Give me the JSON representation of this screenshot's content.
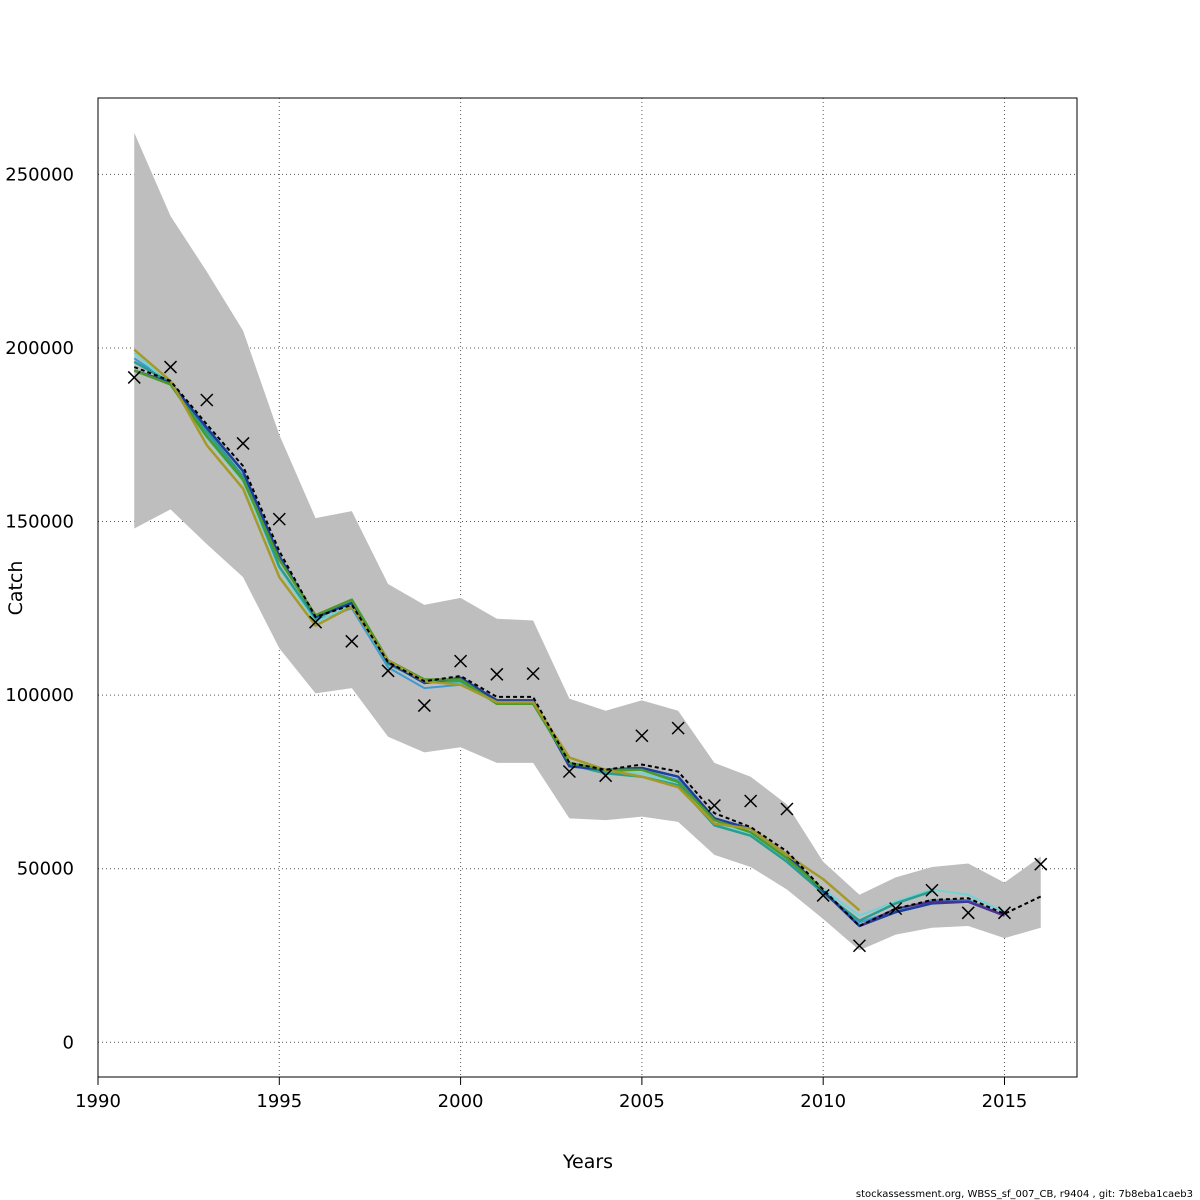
{
  "chart_data": {
    "type": "line",
    "xlabel": "Years",
    "ylabel": "Catch",
    "xlim": [
      1990,
      2017
    ],
    "ylim": [
      -10000,
      272000
    ],
    "x_ticks": [
      1990,
      1995,
      2000,
      2005,
      2010,
      2015
    ],
    "y_ticks": [
      0,
      50000,
      100000,
      150000,
      200000,
      250000
    ],
    "grid": true,
    "band": {
      "color": "#bebebe",
      "x": [
        1991,
        1992,
        1993,
        1994,
        1995,
        1996,
        1997,
        1998,
        1999,
        2000,
        2001,
        2002,
        2003,
        2004,
        2005,
        2006,
        2007,
        2008,
        2009,
        2010,
        2011,
        2012,
        2013,
        2014,
        2015,
        2016
      ],
      "upper": [
        262000,
        238000,
        222000,
        205000,
        175000,
        151000,
        153000,
        132000,
        126000,
        128000,
        122000,
        121500,
        99000,
        95500,
        98500,
        95500,
        80500,
        76500,
        68500,
        52000,
        42500,
        47500,
        50500,
        51500,
        46000,
        53500
      ],
      "lower": [
        148000,
        153500,
        143500,
        134000,
        113500,
        100500,
        102000,
        88000,
        83500,
        85000,
        80500,
        80500,
        64500,
        64000,
        65000,
        63500,
        54000,
        50500,
        44000,
        35500,
        26500,
        31000,
        33000,
        33500,
        30000,
        33000
      ]
    },
    "observed": {
      "name": "",
      "marker": "x",
      "x": [
        1991,
        1992,
        1993,
        1994,
        1995,
        1996,
        1997,
        1998,
        1999,
        2000,
        2001,
        2002,
        2003,
        2004,
        2005,
        2006,
        2007,
        2008,
        2009,
        2010,
        2011,
        2012,
        2013,
        2014,
        2015,
        2016
      ],
      "y": [
        191500,
        194500,
        185000,
        172500,
        150700,
        121000,
        115500,
        107000,
        97000,
        109800,
        106000,
        106200,
        78000,
        76800,
        88300,
        90500,
        68200,
        69500,
        67200,
        42300,
        27800,
        38500,
        43800,
        37300,
        37300,
        51300
      ]
    },
    "x": [
      1991,
      1992,
      1993,
      1994,
      1995,
      1996,
      1997,
      1998,
      1999,
      2000,
      2001,
      2002,
      2003,
      2004,
      2005,
      2006,
      2007,
      2008,
      2009,
      2010,
      2011,
      2012,
      2013,
      2014,
      2015,
      2016
    ],
    "series": [
      {
        "color": "#3d9ad2",
        "width": 2,
        "values": [
          197000,
          190000,
          175000,
          162000,
          137000,
          121500,
          125000,
          108000,
          102000,
          103000,
          98000,
          98000,
          80000,
          78000,
          78500,
          75500,
          64000,
          60500,
          53000,
          43500,
          34500,
          38000,
          41000,
          41000,
          36500,
          null
        ]
      },
      {
        "color": "#6fd3d3",
        "width": 2,
        "values": [
          198500,
          189500,
          174000,
          161500,
          136500,
          121000,
          126000,
          109000,
          103500,
          103500,
          97500,
          97500,
          80500,
          77500,
          77500,
          74500,
          63000,
          60000,
          52500,
          44000,
          36500,
          40500,
          44000,
          42500,
          37500,
          null
        ]
      },
      {
        "color": "#2a9d8f",
        "width": 2.5,
        "values": [
          196000,
          190000,
          176000,
          163000,
          137000,
          122000,
          127000,
          109000,
          104000,
          104000,
          98000,
          98000,
          80000,
          77500,
          76500,
          74000,
          62500,
          59500,
          52000,
          43000,
          35000,
          40000,
          43500,
          null,
          null,
          null
        ]
      },
      {
        "color": "#1d3f9e",
        "width": 2.5,
        "values": [
          193500,
          190000,
          177000,
          164500,
          140000,
          122500,
          126500,
          109500,
          103500,
          105000,
          98500,
          98500,
          79500,
          78500,
          79000,
          76500,
          64500,
          61500,
          54000,
          43500,
          33500,
          37500,
          40000,
          40500,
          36500,
          null
        ]
      },
      {
        "color": "#5b2c8f",
        "width": 2,
        "values": [
          null,
          null,
          null,
          null,
          null,
          null,
          null,
          null,
          null,
          null,
          null,
          null,
          null,
          null,
          null,
          null,
          null,
          null,
          null,
          null,
          33500,
          38500,
          40500,
          40500,
          36500,
          null
        ]
      },
      {
        "color": "#4c9a2a",
        "width": 2.5,
        "values": [
          193500,
          189500,
          174500,
          162000,
          139000,
          123000,
          127500,
          110000,
          104500,
          104500,
          97500,
          97500,
          80500,
          78500,
          78500,
          75000,
          64000,
          60500,
          53000,
          44000,
          null,
          null,
          null,
          null,
          null,
          null
        ]
      },
      {
        "color": "#a39a2a",
        "width": 2.5,
        "values": [
          199500,
          190500,
          172000,
          159500,
          134000,
          120000,
          125500,
          110000,
          104000,
          103000,
          98000,
          98000,
          82000,
          78500,
          76500,
          73500,
          63000,
          61500,
          54000,
          47000,
          38000,
          null,
          null,
          null,
          null,
          null
        ]
      },
      {
        "color": "#000000",
        "width": 2,
        "dash": "4,3",
        "values": [
          194500,
          190500,
          178000,
          166000,
          141500,
          122500,
          126000,
          109500,
          104000,
          105500,
          99500,
          99500,
          80500,
          78500,
          80000,
          78000,
          66000,
          62000,
          55000,
          44000,
          33500,
          38500,
          41000,
          41500,
          37000,
          42000
        ]
      }
    ]
  },
  "footer": "stockassessment.org, WBSS_sf_007_CB, r9404 , git: 7b8eba1caeb3"
}
